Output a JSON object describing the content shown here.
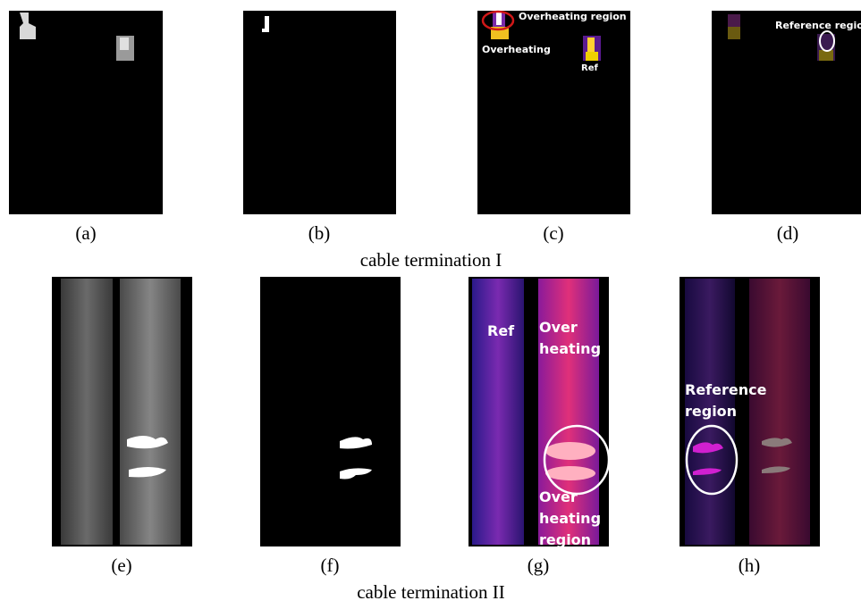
{
  "panels": [
    {
      "label": "(a)"
    },
    {
      "label": "(b)"
    },
    {
      "label": "(c)",
      "annotations": [
        "Overheating region",
        "Overheating",
        "Ref"
      ]
    },
    {
      "label": "(d)",
      "annotations": [
        "Reference region"
      ]
    },
    {
      "label": "(e)"
    },
    {
      "label": "(f)"
    },
    {
      "label": "(g)",
      "annotations": [
        "Ref",
        "Over",
        "heating",
        "Over",
        "heating",
        "region"
      ]
    },
    {
      "label": "(h)",
      "annotations": [
        "Reference",
        "region"
      ]
    }
  ],
  "captions": [
    "cable termination I",
    "cable termination II"
  ]
}
